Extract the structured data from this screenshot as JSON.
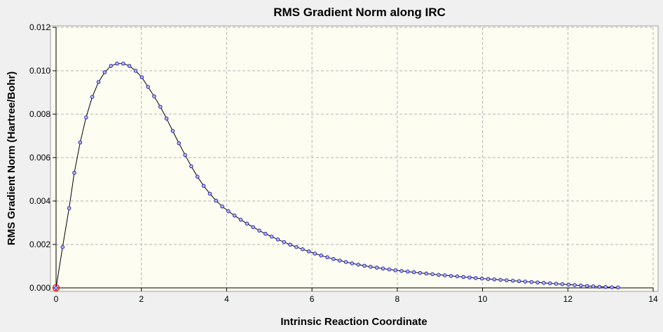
{
  "chart_data": {
    "type": "scatter",
    "title": "RMS Gradient Norm along IRC",
    "xlabel": "Intrinsic Reaction Coordinate",
    "ylabel": "RMS Gradient Norm (Hartree/Bohr)",
    "xlim": [
      0,
      14
    ],
    "ylim": [
      0,
      0.012
    ],
    "x_ticks": [
      "0",
      "2",
      "4",
      "6",
      "8",
      "10",
      "12",
      "14"
    ],
    "y_ticks": [
      "0.000",
      "0.002",
      "0.004",
      "0.006",
      "0.008",
      "0.010",
      "0.012"
    ],
    "grid": true,
    "legend": "none",
    "colors": {
      "plot_background": "#fdfdf2",
      "line": "#000000",
      "marker_fill": "#b6b6ff",
      "marker_edge": "#1a1aa0",
      "highlight_marker": "#ff0000",
      "grid": "#b4b4b4"
    },
    "highlighted_point": {
      "x": 0,
      "y": 0
    },
    "series": [
      {
        "x": [
          0,
          0.153,
          0.306,
          0.428,
          0.566,
          0.704,
          0.849,
          0.995,
          1.14,
          1.285,
          1.43,
          1.575,
          1.72,
          1.865,
          2.01,
          2.155,
          2.3,
          2.445,
          2.59,
          2.735,
          2.88,
          3.025,
          3.17,
          3.315,
          3.46,
          3.605,
          3.75,
          3.895,
          4.04,
          4.185,
          4.33,
          4.475,
          4.62,
          4.765,
          4.91,
          5.055,
          5.2,
          5.345,
          5.49,
          5.635,
          5.78,
          5.925,
          6.07,
          6.215,
          6.36,
          6.505,
          6.65,
          6.795,
          6.94,
          7.085,
          7.23,
          7.375,
          7.52,
          7.665,
          7.81,
          7.955,
          8.1,
          8.245,
          8.39,
          8.535,
          8.68,
          8.825,
          8.97,
          9.115,
          9.26,
          9.405,
          9.55,
          9.695,
          9.84,
          9.985,
          10.13,
          10.275,
          10.42,
          10.565,
          10.71,
          10.855,
          11.0,
          11.145,
          11.29,
          11.435,
          11.58,
          11.725,
          11.87,
          12.015,
          12.16,
          12.305,
          12.45,
          12.595,
          12.74,
          12.885,
          13.03,
          13.175
        ],
        "y": [
          0.0,
          0.00188,
          0.00367,
          0.0053,
          0.0067,
          0.00785,
          0.0088,
          0.00948,
          0.00993,
          0.01022,
          0.01033,
          0.01033,
          0.01022,
          0.01,
          0.0097,
          0.00926,
          0.00882,
          0.00834,
          0.0078,
          0.00723,
          0.00666,
          0.00612,
          0.0056,
          0.00512,
          0.0047,
          0.00434,
          0.00402,
          0.00375,
          0.00353,
          0.00333,
          0.00314,
          0.00296,
          0.0028,
          0.00264,
          0.00249,
          0.00236,
          0.00223,
          0.00211,
          0.00199,
          0.00188,
          0.00178,
          0.00168,
          0.00158,
          0.00149,
          0.00141,
          0.00133,
          0.00126,
          0.00119,
          0.00113,
          0.00107,
          0.00102,
          0.00097,
          0.00093,
          0.00089,
          0.00085,
          0.00081,
          0.00078,
          0.00075,
          0.00072,
          0.00069,
          0.00066,
          0.00063,
          0.0006,
          0.00058,
          0.00055,
          0.00053,
          0.0005,
          0.00048,
          0.00045,
          0.00043,
          0.00041,
          0.00039,
          0.00037,
          0.00035,
          0.00033,
          0.00031,
          0.00029,
          0.00027,
          0.00025,
          0.00023,
          0.00021,
          0.00019,
          0.00017,
          0.00015,
          0.00013,
          0.00011,
          9e-05,
          7e-05,
          5e-05,
          4e-05,
          3e-05,
          2e-05
        ]
      }
    ]
  }
}
